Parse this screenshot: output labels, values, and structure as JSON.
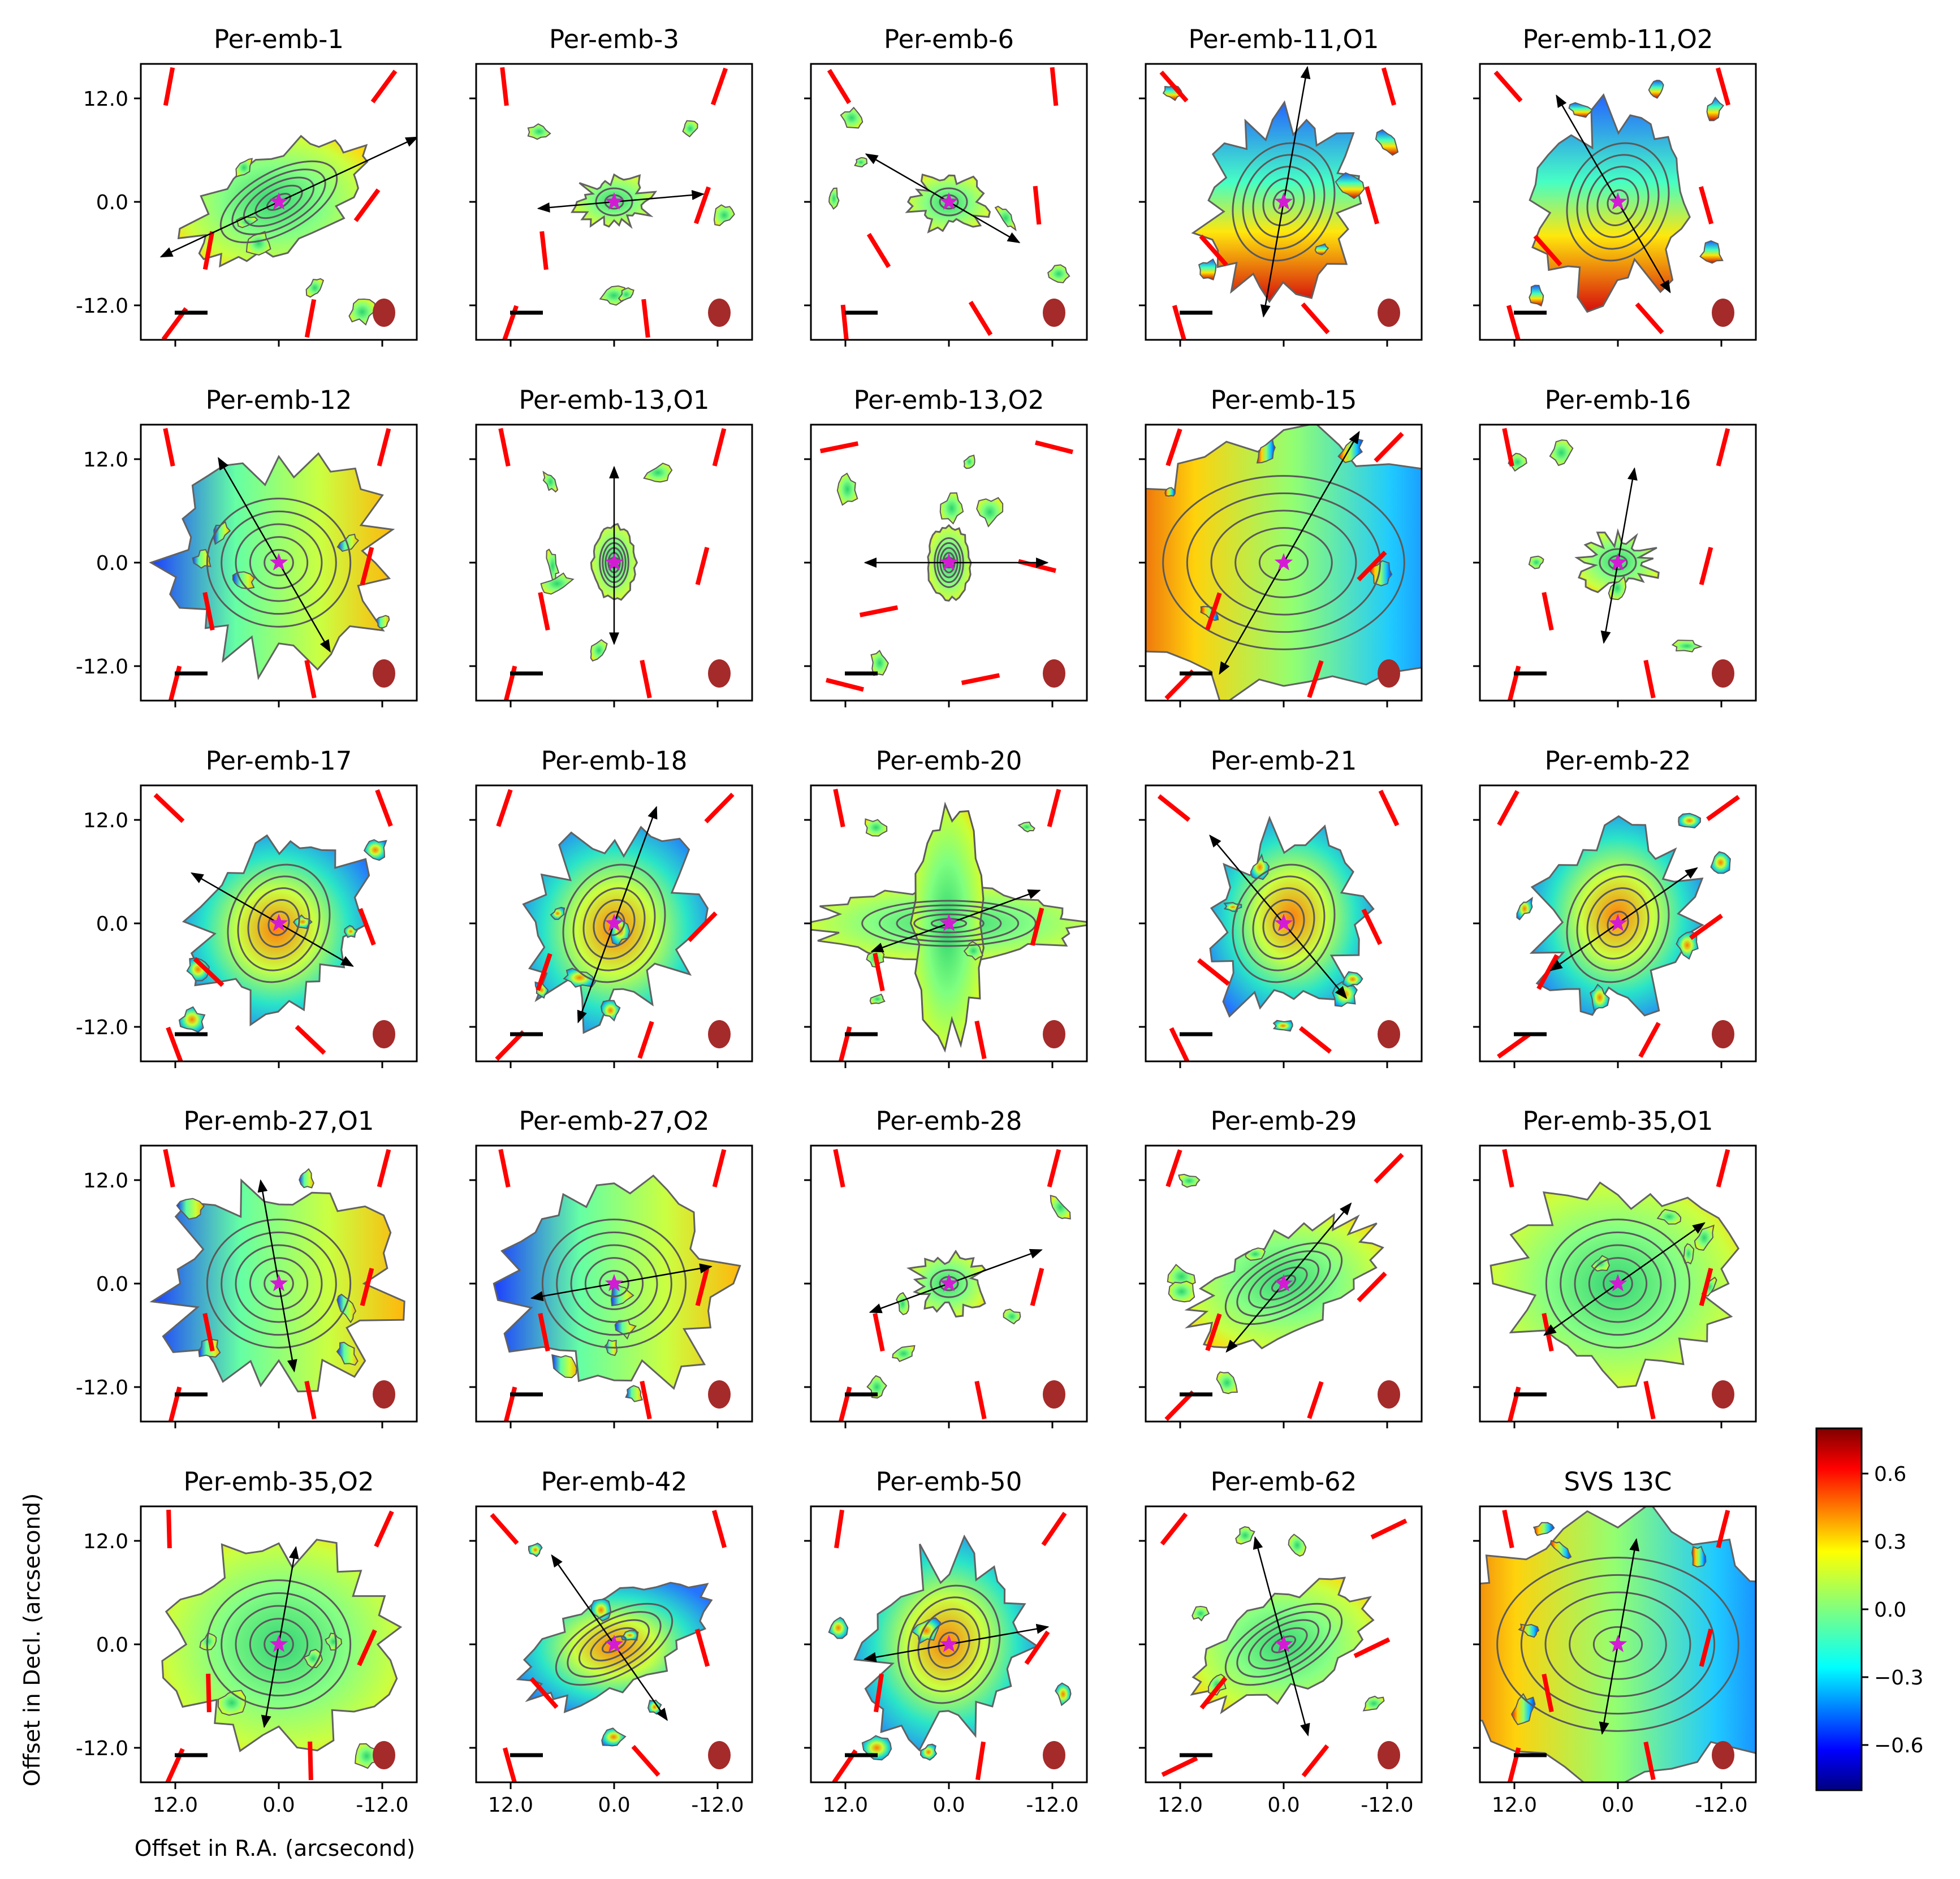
{
  "chart_data": {
    "type": "heatmap",
    "layout": {
      "rows": 5,
      "cols": 5
    },
    "panels": [
      {
        "title": "Per-emb-1",
        "shape": "elong",
        "color": "green",
        "pa": 22,
        "outflow": 65,
        "rmax": 15.2
      },
      {
        "title": "Per-emb-3",
        "shape": "small",
        "color": "green",
        "pa": 5,
        "outflow": 85,
        "rmax": 8.9
      },
      {
        "title": "Per-emb-6",
        "shape": "small",
        "color": "green",
        "pa": -20,
        "outflow": -60,
        "rmax": 9.5
      },
      {
        "title": "Per-emb-11,O1",
        "shape": "blob",
        "color": "split",
        "pa": -30,
        "outflow": 10,
        "rmax": 13.6
      },
      {
        "title": "Per-emb-11,O2",
        "shape": "blob",
        "color": "split",
        "pa": 150,
        "outflow": -30,
        "rmax": 12.2
      },
      {
        "title": "Per-emb-12",
        "shape": "big",
        "color": "bluewest",
        "pa": 0,
        "outflow": -30,
        "rmax": 12.0
      },
      {
        "title": "Per-emb-13,O1",
        "shape": "compact",
        "color": "green",
        "pa": 0,
        "outflow": 0,
        "rmax": 9.5
      },
      {
        "title": "Per-emb-13,O2",
        "shape": "compact",
        "color": "green",
        "pa": 90,
        "outflow": 90,
        "rmax": 9.8
      },
      {
        "title": "Per-emb-15",
        "shape": "full",
        "color": "redeast",
        "pa": 30,
        "outflow": 30,
        "rmax": 15.0
      },
      {
        "title": "Per-emb-16",
        "shape": "small",
        "color": "green",
        "pa": 0,
        "outflow": 10,
        "rmax": 9.5
      },
      {
        "title": "Per-emb-17",
        "shape": "blob",
        "color": "mix",
        "pa": -35,
        "outflow": -60,
        "rmax": 10.0
      },
      {
        "title": "Per-emb-18",
        "shape": "blob",
        "color": "mix",
        "pa": 30,
        "outflow": 20,
        "rmax": 12.3
      },
      {
        "title": "Per-emb-20",
        "shape": "cross",
        "color": "green",
        "pa": 0,
        "outflow": 70,
        "rmax": 9.6
      },
      {
        "title": "Per-emb-21",
        "shape": "blob",
        "color": "mix",
        "pa": -40,
        "outflow": -40,
        "rmax": 11.4
      },
      {
        "title": "Per-emb-22",
        "shape": "blob",
        "color": "mix",
        "pa": 40,
        "outflow": 55,
        "rmax": 9.6
      },
      {
        "title": "Per-emb-27,O1",
        "shape": "big",
        "color": "bluewest",
        "pa": 0,
        "outflow": -10,
        "rmax": 10.4
      },
      {
        "title": "Per-emb-27,O2",
        "shape": "big",
        "color": "bluewest",
        "pa": 0,
        "outflow": 80,
        "rmax": 9.8
      },
      {
        "title": "Per-emb-28",
        "shape": "small",
        "color": "green",
        "pa": 0,
        "outflow": 70,
        "rmax": 9.8
      },
      {
        "title": "Per-emb-29",
        "shape": "elong",
        "color": "green",
        "pa": 30,
        "outflow": 40,
        "rmax": 10.4
      },
      {
        "title": "Per-emb-35,O1",
        "shape": "big",
        "color": "green",
        "pa": 0,
        "outflow": 55,
        "rmax": 10.5
      },
      {
        "title": "Per-emb-35,O2",
        "shape": "big",
        "color": "green",
        "pa": 10,
        "outflow": 10,
        "rmax": 9.8
      },
      {
        "title": "Per-emb-42",
        "shape": "elong",
        "color": "mix",
        "pa": -30,
        "outflow": -35,
        "rmax": 10.8
      },
      {
        "title": "Per-emb-50",
        "shape": "blob",
        "color": "mix",
        "pa": 20,
        "outflow": 80,
        "rmax": 10.0
      },
      {
        "title": "Per-emb-62",
        "shape": "elong",
        "color": "green",
        "pa": 50,
        "outflow": -15,
        "rmax": 11.0
      },
      {
        "title": "SVS 13C",
        "shape": "full",
        "color": "redeast",
        "pa": 0,
        "outflow": 10,
        "rmax": 10.6
      }
    ],
    "x_ticks": [
      "12.0",
      "0.0",
      "-12.0"
    ],
    "y_ticks": [
      "12.0",
      "0.0",
      "-12.0"
    ],
    "xlabel": "Offset in R.A. (arcsecond)",
    "ylabel": "Offset in Decl. (arcsecond)",
    "xlim": [
      16,
      -16
    ],
    "ylim": [
      -16,
      16
    ],
    "colorbar": {
      "ticks": [
        "0.6",
        "0.3",
        "0.0",
        "−0.3",
        "−0.6"
      ],
      "tick_values": [
        0.6,
        0.3,
        0.0,
        -0.3,
        -0.6
      ],
      "range": [
        -0.8,
        0.8
      ],
      "cmap": "jet"
    },
    "colors": {
      "star": "#d41bd4",
      "beam": "#a52a2a",
      "polarization": "#ff0000",
      "contour": "#5a5a5a"
    }
  }
}
